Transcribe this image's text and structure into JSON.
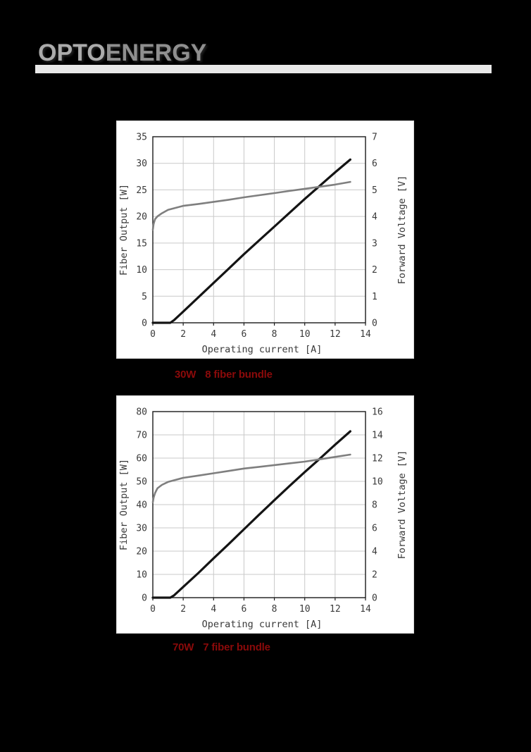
{
  "page": {
    "background": "#000000",
    "logo": {
      "part1": "OPTO",
      "part2": "ENERGY",
      "color1": "#ababab",
      "color2": "#8f8f8f",
      "underline_color": "#e9e9e9"
    }
  },
  "captions": [
    {
      "power": "30W",
      "bundle": "8 fiber bundle",
      "color": "#8b0a0a"
    },
    {
      "power": "70W",
      "bundle": "7 fiber bundle",
      "color": "#8b0a0a"
    }
  ],
  "chart_data": [
    {
      "type": "line",
      "title": "",
      "xlabel": "Operating current [A]",
      "ylabel_left": "Fiber Output [W]",
      "ylabel_right": "Forward Voltage [V]",
      "xlim": [
        0,
        14
      ],
      "x_ticks": [
        0,
        2,
        4,
        6,
        8,
        10,
        12,
        14
      ],
      "ylim_left": [
        0,
        35
      ],
      "left_ticks": [
        0,
        5,
        10,
        15,
        20,
        25,
        30,
        35
      ],
      "ylim_right": [
        0,
        7
      ],
      "right_ticks": [
        0,
        1,
        2,
        3,
        4,
        5,
        6,
        7
      ],
      "grid": true,
      "legend": "none",
      "colors": {
        "grid": "#c9c9c9",
        "frame": "#1a1a1a"
      },
      "series": [
        {
          "name": "Fiber Output",
          "axis": "left",
          "color": "#141414",
          "width": 3.2,
          "points": [
            [
              0,
              0
            ],
            [
              1.15,
              0
            ],
            [
              1.4,
              0.5
            ],
            [
              2,
              2.1
            ],
            [
              3,
              4.8
            ],
            [
              4,
              7.5
            ],
            [
              5,
              10.2
            ],
            [
              6,
              12.9
            ],
            [
              7,
              15.5
            ],
            [
              8,
              18.1
            ],
            [
              9,
              20.7
            ],
            [
              10,
              23.3
            ],
            [
              11,
              25.8
            ],
            [
              12,
              28.3
            ],
            [
              13,
              30.7
            ]
          ]
        },
        {
          "name": "Forward Voltage",
          "axis": "right",
          "color": "#7f7f7f",
          "width": 2.6,
          "points": [
            [
              0,
              3.5
            ],
            [
              0.05,
              3.72
            ],
            [
              0.15,
              3.9
            ],
            [
              0.3,
              4.0
            ],
            [
              0.6,
              4.12
            ],
            [
              1,
              4.25
            ],
            [
              2,
              4.4
            ],
            [
              3,
              4.47
            ],
            [
              4,
              4.55
            ],
            [
              5,
              4.63
            ],
            [
              6,
              4.72
            ],
            [
              7,
              4.8
            ],
            [
              8,
              4.88
            ],
            [
              9,
              4.96
            ],
            [
              10,
              5.04
            ],
            [
              11,
              5.12
            ],
            [
              12,
              5.2
            ],
            [
              13,
              5.3
            ]
          ]
        }
      ]
    },
    {
      "type": "line",
      "title": "",
      "xlabel": "Operating current [A]",
      "ylabel_left": "Fiber Output [W]",
      "ylabel_right": "Forward Voltage [V]",
      "xlim": [
        0,
        14
      ],
      "x_ticks": [
        0,
        2,
        4,
        6,
        8,
        10,
        12,
        14
      ],
      "ylim_left": [
        0,
        80
      ],
      "left_ticks": [
        0,
        10,
        20,
        30,
        40,
        50,
        60,
        70,
        80
      ],
      "ylim_right": [
        0,
        16
      ],
      "right_ticks": [
        0,
        2,
        4,
        6,
        8,
        10,
        12,
        14,
        16
      ],
      "grid": true,
      "legend": "none",
      "colors": {
        "grid": "#c9c9c9",
        "frame": "#1a1a1a"
      },
      "series": [
        {
          "name": "Fiber Output",
          "axis": "left",
          "color": "#141414",
          "width": 3.2,
          "points": [
            [
              0,
              0
            ],
            [
              1.15,
              0
            ],
            [
              1.4,
              1.0
            ],
            [
              2,
              4.6
            ],
            [
              3,
              10.6
            ],
            [
              4,
              16.9
            ],
            [
              5,
              23.1
            ],
            [
              6,
              29.4
            ],
            [
              7,
              35.7
            ],
            [
              8,
              41.9
            ],
            [
              9,
              48.0
            ],
            [
              10,
              54.0
            ],
            [
              11,
              59.8
            ],
            [
              12,
              65.8
            ],
            [
              13,
              71.5
            ]
          ]
        },
        {
          "name": "Forward Voltage",
          "axis": "right",
          "color": "#7f7f7f",
          "width": 2.6,
          "points": [
            [
              0,
              8.2
            ],
            [
              0.05,
              8.6
            ],
            [
              0.15,
              9.0
            ],
            [
              0.3,
              9.4
            ],
            [
              0.6,
              9.7
            ],
            [
              1,
              9.95
            ],
            [
              2,
              10.3
            ],
            [
              3,
              10.5
            ],
            [
              4,
              10.7
            ],
            [
              5,
              10.9
            ],
            [
              6,
              11.1
            ],
            [
              7,
              11.25
            ],
            [
              8,
              11.4
            ],
            [
              9,
              11.55
            ],
            [
              10,
              11.7
            ],
            [
              11,
              11.9
            ],
            [
              12,
              12.1
            ],
            [
              13,
              12.3
            ]
          ]
        }
      ]
    }
  ]
}
